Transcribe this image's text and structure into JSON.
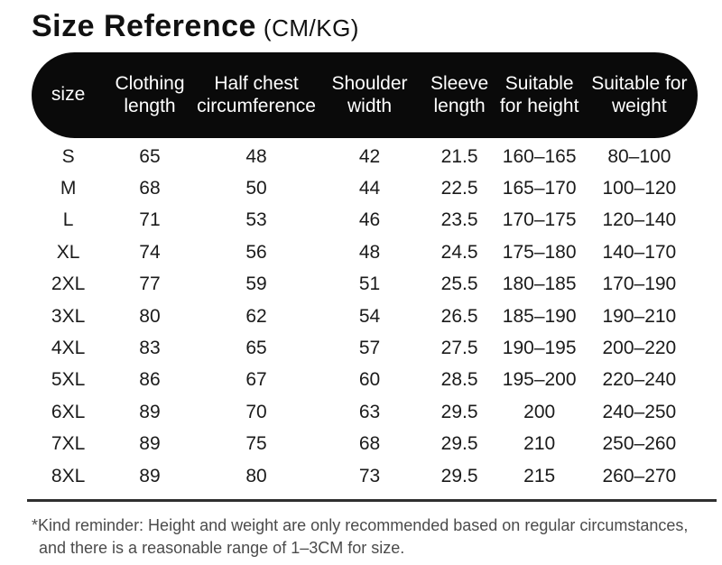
{
  "title": {
    "text": "Size Reference",
    "unit": "(CM/KG)"
  },
  "table": {
    "columns": [
      {
        "label": "size"
      },
      {
        "label": "Clothing length"
      },
      {
        "label": "Half chest circumference"
      },
      {
        "label": "Shoulder width"
      },
      {
        "label": "Sleeve length"
      },
      {
        "label": "Suitable for height"
      },
      {
        "label": "Suitable for weight"
      }
    ],
    "rows": [
      [
        "S",
        "65",
        "48",
        "42",
        "21.5",
        "160–165",
        "80–100"
      ],
      [
        "M",
        "68",
        "50",
        "44",
        "22.5",
        "165–170",
        "100–120"
      ],
      [
        "L",
        "71",
        "53",
        "46",
        "23.5",
        "170–175",
        "120–140"
      ],
      [
        "XL",
        "74",
        "56",
        "48",
        "24.5",
        "175–180",
        "140–170"
      ],
      [
        "2XL",
        "77",
        "59",
        "51",
        "25.5",
        "180–185",
        "170–190"
      ],
      [
        "3XL",
        "80",
        "62",
        "54",
        "26.5",
        "185–190",
        "190–210"
      ],
      [
        "4XL",
        "83",
        "65",
        "57",
        "27.5",
        "190–195",
        "200–220"
      ],
      [
        "5XL",
        "86",
        "67",
        "60",
        "28.5",
        "195–200",
        "220–240"
      ],
      [
        "6XL",
        "89",
        "70",
        "63",
        "29.5",
        "200",
        "240–250"
      ],
      [
        "7XL",
        "89",
        "75",
        "68",
        "29.5",
        "210",
        "250–260"
      ],
      [
        "8XL",
        "89",
        "80",
        "73",
        "29.5",
        "215",
        "260–270"
      ]
    ]
  },
  "colors": {
    "header_bg": "#0a0a0a",
    "header_text": "#ffffff",
    "body_text": "#1b1b1b",
    "note_text": "#4b4b4b"
  },
  "footnote": {
    "line1": "*Kind reminder: Height and weight are only recommended based on regular circumstances,",
    "line2": "and there is a reasonable range of 1–3CM for size."
  }
}
